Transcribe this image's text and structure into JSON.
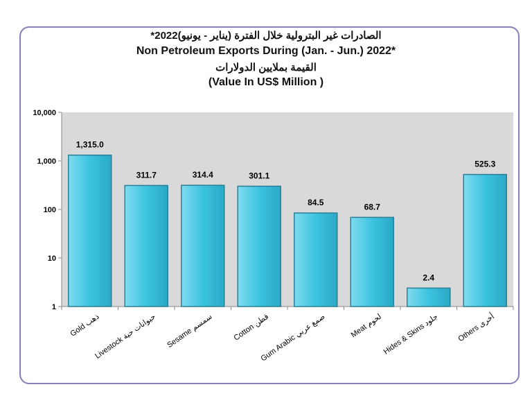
{
  "chart_data": {
    "type": "bar",
    "title_ar": "الصادرات غير البترولية خلال الفترة (يناير - يونيو)2022*",
    "title": "Non Petroleum Exports During (Jan. - Jun.) 2022*",
    "subtitle_ar": "القيمة بملايين الدولارات",
    "subtitle": "(Value In US$ Million )",
    "yscale": "log",
    "ylim": [
      1,
      10000
    ],
    "yticks": [
      "1",
      "10",
      "100",
      "1,000",
      "10,000"
    ],
    "categories": [
      "Gold ذهب",
      "Livestock حيوانات حية",
      "Sesame سمسم",
      "Cotton قطن",
      "Gum Arabic صمغ عربي",
      "Meat لحوم",
      "Hides & Skins جلود",
      "Others أخرى"
    ],
    "values": [
      1315.0,
      311.7,
      314.4,
      301.1,
      84.5,
      68.7,
      2.4,
      525.3
    ],
    "labels": [
      "1,315.0",
      "311.7",
      "314.4",
      "301.1",
      "84.5",
      "68.7",
      "2.4",
      "525.3"
    ],
    "grid": false,
    "colors": {
      "bar": "#3cc3e0",
      "bar_border": "#2a7f94",
      "plot_bg": "#d9d9d9",
      "frame": "#8a7fb8"
    }
  }
}
